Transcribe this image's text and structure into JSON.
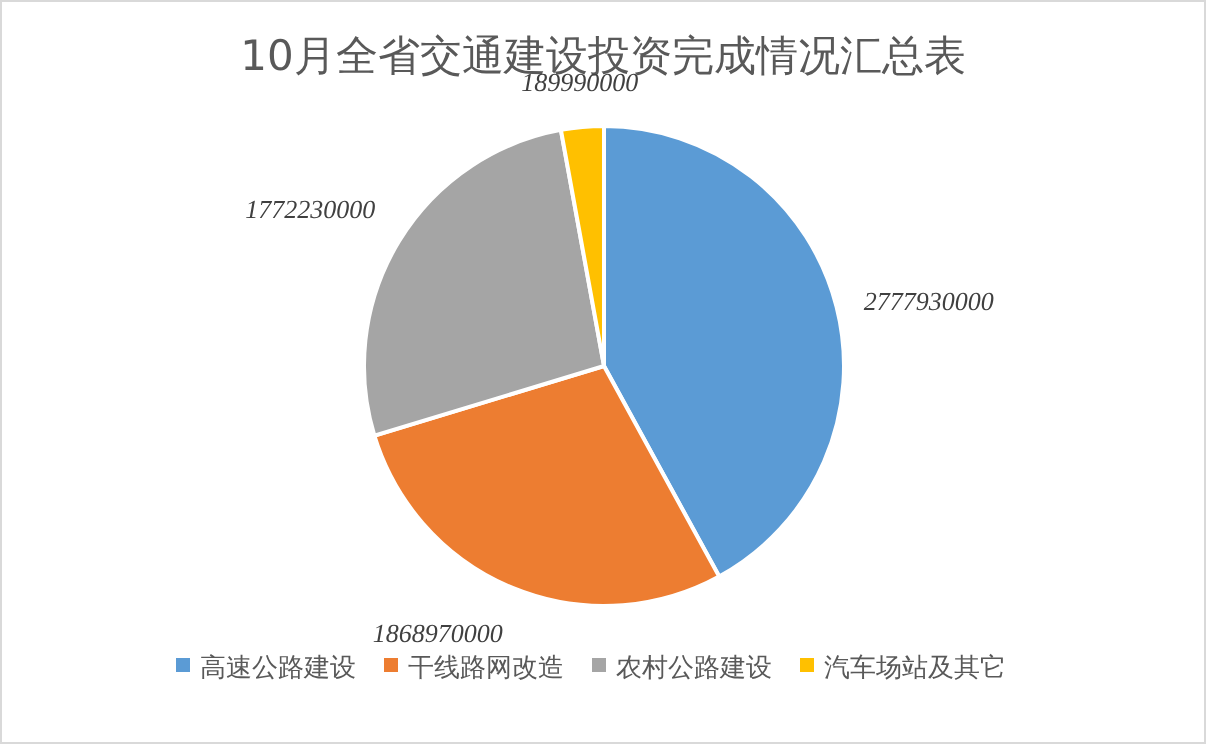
{
  "chart_data": {
    "type": "pie",
    "title": "10月全省交通建设投资完成情况汇总表",
    "categories": [
      "高速公路建设",
      "干线路网改造",
      "农村公路建设",
      "汽车场站及其它"
    ],
    "values": [
      2777930000,
      1868970000,
      1772230000,
      189990000
    ],
    "colors": [
      "#5b9bd5",
      "#ed7d31",
      "#a5a5a5",
      "#ffc000"
    ],
    "data_labels": true,
    "legend": "bottom"
  }
}
